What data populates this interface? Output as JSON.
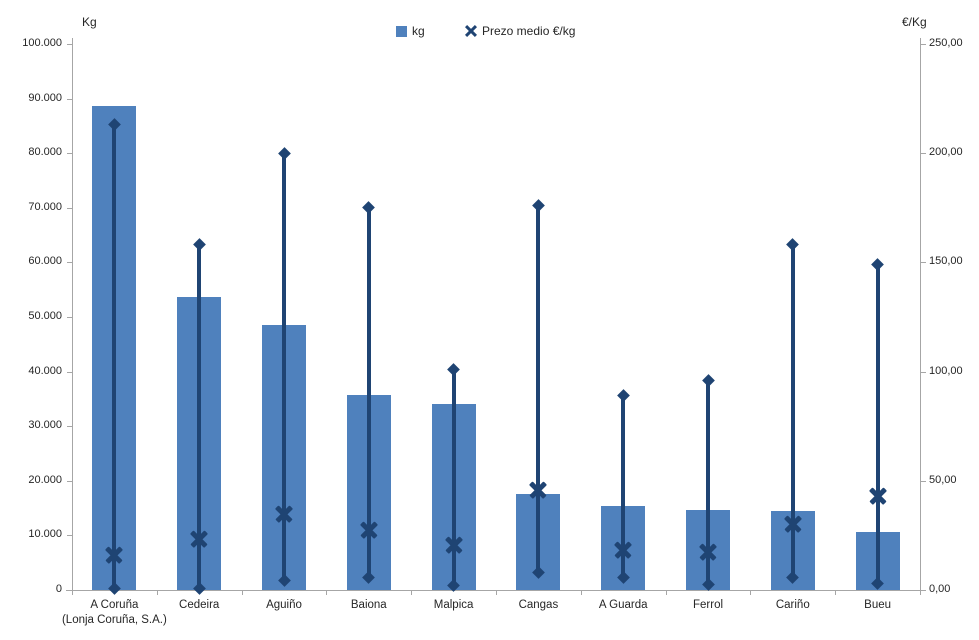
{
  "chart_data": {
    "type": "bar",
    "title": "",
    "categories": [
      "A Coruña\n(Lonja Coruña, S.A.)",
      "Cedeira",
      "Aguiño",
      "Baiona",
      "Malpica",
      "Cangas",
      "A Guarda",
      "Ferrol",
      "Cariño",
      "Bueu"
    ],
    "series": [
      {
        "name": "kg",
        "type": "bar",
        "axis": "left",
        "values": [
          88600,
          53700,
          48600,
          35800,
          34100,
          17600,
          15400,
          14600,
          14500,
          10600
        ]
      },
      {
        "name": "Prezo medio €/kg",
        "type": "x-marker",
        "axis": "right",
        "values": [
          16.0,
          23.5,
          35.0,
          27.5,
          20.5,
          46.0,
          18.5,
          17.5,
          30.0,
          43.0
        ]
      },
      {
        "name": "Prezo rango (min)",
        "type": "range-low",
        "axis": "right",
        "values": [
          0.5,
          0.5,
          4.5,
          5.5,
          2.0,
          8.0,
          5.5,
          2.5,
          5.5,
          3.0
        ]
      },
      {
        "name": "Prezo rango (max)",
        "type": "range-high",
        "axis": "right",
        "values": [
          213,
          158,
          200,
          175,
          101,
          176,
          89,
          96,
          158,
          149
        ]
      }
    ],
    "left_axis": {
      "title": "Kg",
      "min": 0,
      "max": 100000,
      "step": 10000,
      "tick_labels": [
        "0",
        "10.000",
        "20.000",
        "30.000",
        "40.000",
        "50.000",
        "60.000",
        "70.000",
        "80.000",
        "90.000",
        "100.000"
      ]
    },
    "right_axis": {
      "title": "€/Kg",
      "min": 0,
      "max": 250,
      "step": 50,
      "tick_labels": [
        "0,00",
        "50,00",
        "100,00",
        "150,00",
        "200,00",
        "250,00"
      ]
    },
    "legend": [
      {
        "label": "kg",
        "marker": "square"
      },
      {
        "label": "Prezo medio €/kg",
        "marker": "x"
      }
    ],
    "colors": {
      "bar": "#4F81BD",
      "line": "#1F4473",
      "axis_line": "#a6a6a6",
      "text": "#262626"
    },
    "layout": {
      "grid": false,
      "legend_position": "top-center"
    }
  }
}
